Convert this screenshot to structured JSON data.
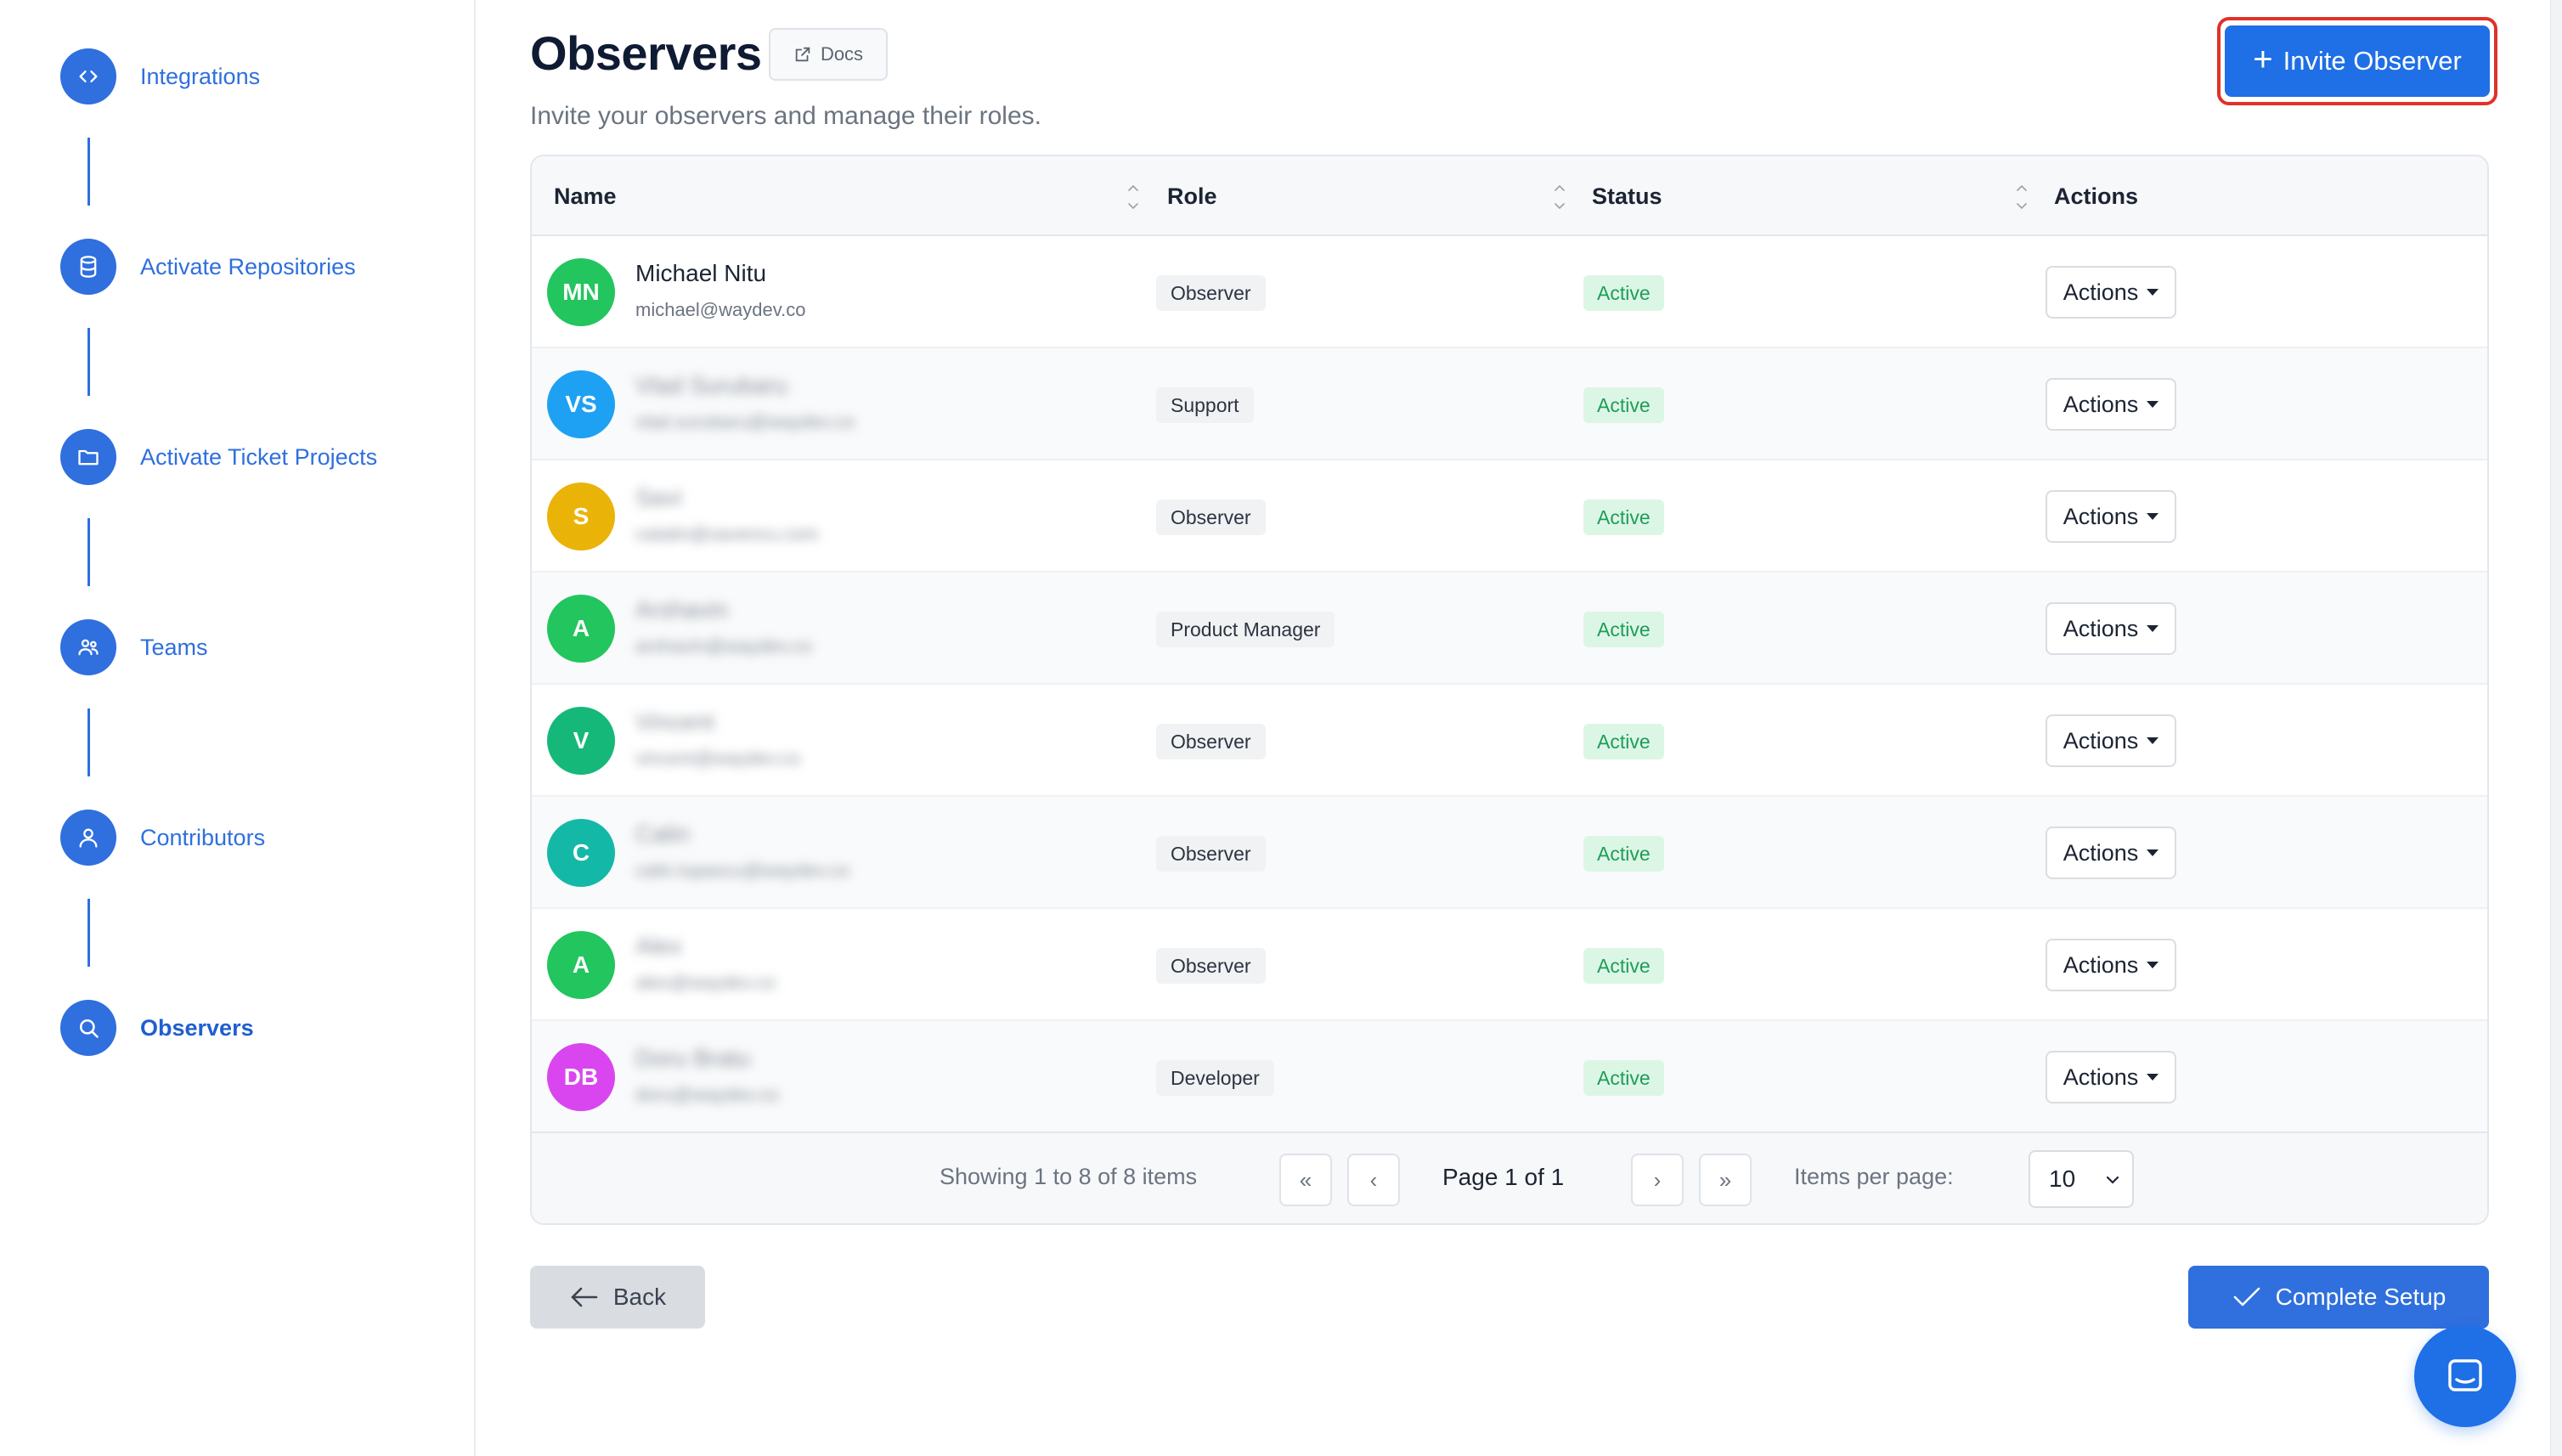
{
  "sidebar": {
    "steps": [
      {
        "label": "Integrations",
        "icon": "code-icon"
      },
      {
        "label": "Activate Repositories",
        "icon": "database-icon"
      },
      {
        "label": "Activate Ticket Projects",
        "icon": "folder-icon"
      },
      {
        "label": "Teams",
        "icon": "users-icon"
      },
      {
        "label": "Contributors",
        "icon": "user-icon"
      },
      {
        "label": "Observers",
        "icon": "search-icon",
        "active": true
      }
    ]
  },
  "header": {
    "title": "Observers",
    "docs_label": "Docs",
    "subtitle": "Invite your observers and manage their roles.",
    "invite_label": "Invite Observer"
  },
  "table": {
    "columns": {
      "name": "Name",
      "role": "Role",
      "status": "Status",
      "actions": "Actions"
    },
    "rows": [
      {
        "initials": "MN",
        "avatar_color": "#22c55e",
        "name": "Michael Nitu",
        "email": "michael@waydev.co",
        "role": "Observer",
        "status": "Active",
        "action_label": "Actions"
      },
      {
        "initials": "VS",
        "avatar_color": "#1ea1f2",
        "name": "Vlad Surubaru",
        "email": "vlad.surubaru@waydev.co",
        "role": "Support",
        "status": "Active",
        "action_label": "Actions"
      },
      {
        "initials": "S",
        "avatar_color": "#eab308",
        "name": "Savi",
        "email": "catalin@savencu.com",
        "role": "Observer",
        "status": "Active",
        "action_label": "Actions"
      },
      {
        "initials": "A",
        "avatar_color": "#22c55e",
        "name": "Arshavin",
        "email": "arshavin@waydev.co",
        "role": "Product Manager",
        "status": "Active",
        "action_label": "Actions"
      },
      {
        "initials": "V",
        "avatar_color": "#16b87a",
        "name": "Vincent",
        "email": "vincent@waydev.co",
        "role": "Observer",
        "status": "Active",
        "action_label": "Actions"
      },
      {
        "initials": "C",
        "avatar_color": "#14b8a6",
        "name": "Calin",
        "email": "calin.lupascu@waydev.co",
        "role": "Observer",
        "status": "Active",
        "action_label": "Actions"
      },
      {
        "initials": "A",
        "avatar_color": "#22c55e",
        "name": "Alex",
        "email": "alex@waydev.co",
        "role": "Observer",
        "status": "Active",
        "action_label": "Actions"
      },
      {
        "initials": "DB",
        "avatar_color": "#d946ef",
        "name": "Doru Bratu",
        "email": "doru@waydev.co",
        "role": "Developer",
        "status": "Active",
        "action_label": "Actions"
      }
    ]
  },
  "pagination": {
    "showing": "Showing 1 to 8 of 8 items",
    "first": "«",
    "prev": "‹",
    "page_info": "Page 1 of 1",
    "next": "›",
    "last": "»",
    "items_per_page_label": "Items per page:",
    "items_per_page_value": "10"
  },
  "footer": {
    "back_label": "Back",
    "complete_label": "Complete Setup"
  },
  "colors": {
    "accent": "#2f6fde",
    "invite_highlight": "#e0312a",
    "status_green": "#1f9d57"
  }
}
